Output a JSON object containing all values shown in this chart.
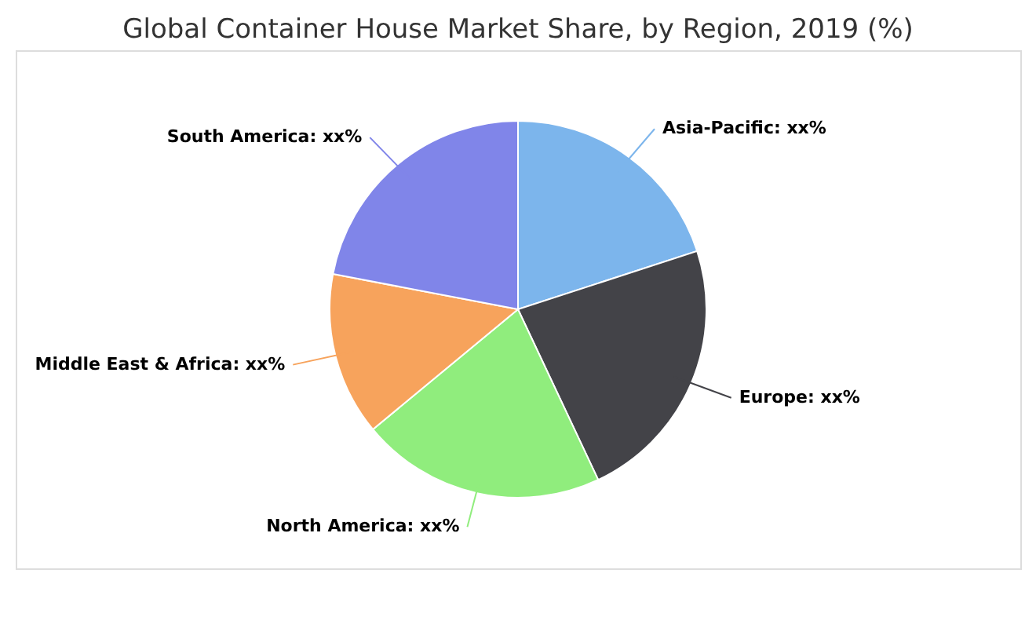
{
  "chart_data": {
    "type": "pie",
    "title": "Global Container House Market Share, by Region, 2019 (%)",
    "categories": [
      "Asia-Pacific",
      "Europe",
      "North America",
      "Middle East & Africa",
      "South America"
    ],
    "values": [
      20,
      23,
      21,
      14,
      22
    ],
    "value_labels": [
      "xx%",
      "xx%",
      "xx%",
      "xx%",
      "xx%"
    ],
    "colors": [
      "#7cb5ec",
      "#434348",
      "#90ed7d",
      "#f7a35c",
      "#8085e9"
    ],
    "legend": false
  }
}
